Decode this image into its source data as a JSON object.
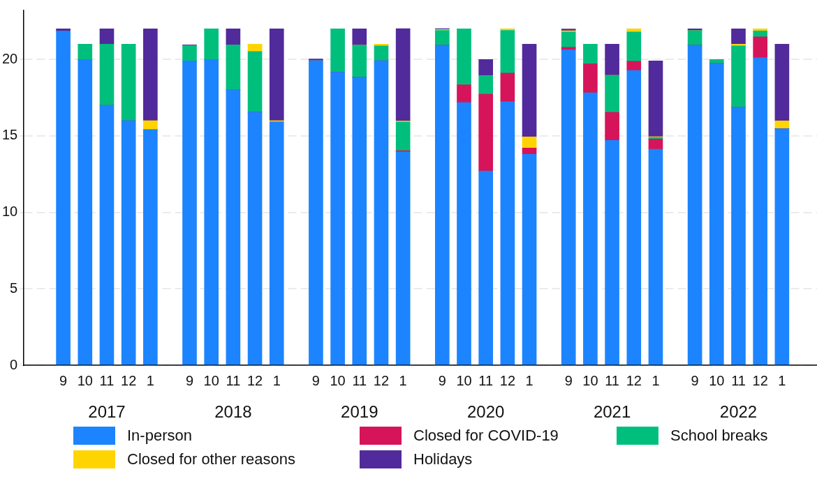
{
  "chart_data": {
    "type": "bar",
    "stacked": true,
    "categories": [
      "9",
      "10",
      "11",
      "12",
      "1",
      "9",
      "10",
      "11",
      "12",
      "1",
      "9",
      "10",
      "11",
      "12",
      "1",
      "9",
      "10",
      "11",
      "12",
      "1",
      "9",
      "10",
      "11",
      "12",
      "1",
      "9",
      "10",
      "11",
      "12",
      "1"
    ],
    "annotations": [
      "2017",
      "2018",
      "2019",
      "2020",
      "2021",
      "2022"
    ],
    "series": [
      {
        "name": "In-person",
        "color": "#1c84ff",
        "values": [
          21.85,
          20,
          17,
          16,
          15.4,
          19.9,
          20,
          18,
          16.55,
          15.9,
          19.93,
          19.16,
          18.83,
          19.92,
          13.95,
          20.93,
          17.18,
          12.7,
          17.24,
          13.8,
          20.62,
          17.82,
          14.71,
          19.28,
          14.13,
          20.93,
          19.74,
          16.87,
          20.11,
          15.47
        ]
      },
      {
        "name": "Closed for COVID-19",
        "color": "#d6145a",
        "values": [
          0,
          0,
          0,
          0,
          0,
          0,
          0,
          0,
          0,
          0,
          0,
          0,
          0,
          0,
          0.09,
          0,
          1.16,
          5.03,
          1.86,
          0.41,
          0.17,
          1.89,
          1.83,
          0.6,
          0.67,
          0,
          0,
          0,
          1.37,
          0
        ]
      },
      {
        "name": "School breaks",
        "color": "#00bf7d",
        "values": [
          0,
          1,
          4,
          5,
          0,
          1,
          2,
          2.95,
          3.97,
          0,
          0,
          2.84,
          2.1,
          0.96,
          1.86,
          0.97,
          3.66,
          1.2,
          2.8,
          0,
          1,
          1.29,
          2.42,
          1.92,
          0.1,
          0.96,
          0.26,
          4.01,
          0.38,
          0
        ]
      },
      {
        "name": "Closed for other reasons",
        "color": "#ffd400",
        "values": [
          0,
          0,
          0,
          0,
          0.6,
          0,
          0,
          0,
          0.48,
          0.1,
          0,
          0,
          0,
          0.12,
          0.07,
          0.06,
          0,
          0,
          0.1,
          0.73,
          0.09,
          0,
          0,
          0.2,
          0.05,
          0,
          0,
          0.12,
          0.14,
          0.51
        ]
      },
      {
        "name": "Holidays",
        "color": "#512a9b",
        "values": [
          0.15,
          0,
          1,
          0,
          6,
          0.05,
          0,
          1.05,
          0,
          6,
          0.1,
          0,
          1.07,
          0,
          6.04,
          0.05,
          0,
          1.07,
          0,
          6.06,
          0.11,
          0,
          2.04,
          0,
          4.95,
          0.11,
          0,
          1,
          0,
          5.02
        ]
      }
    ],
    "ylim": [
      0,
      23.2
    ],
    "yticks": [
      0,
      5,
      10,
      15,
      20
    ],
    "grid": "y",
    "legend": "bottom"
  }
}
